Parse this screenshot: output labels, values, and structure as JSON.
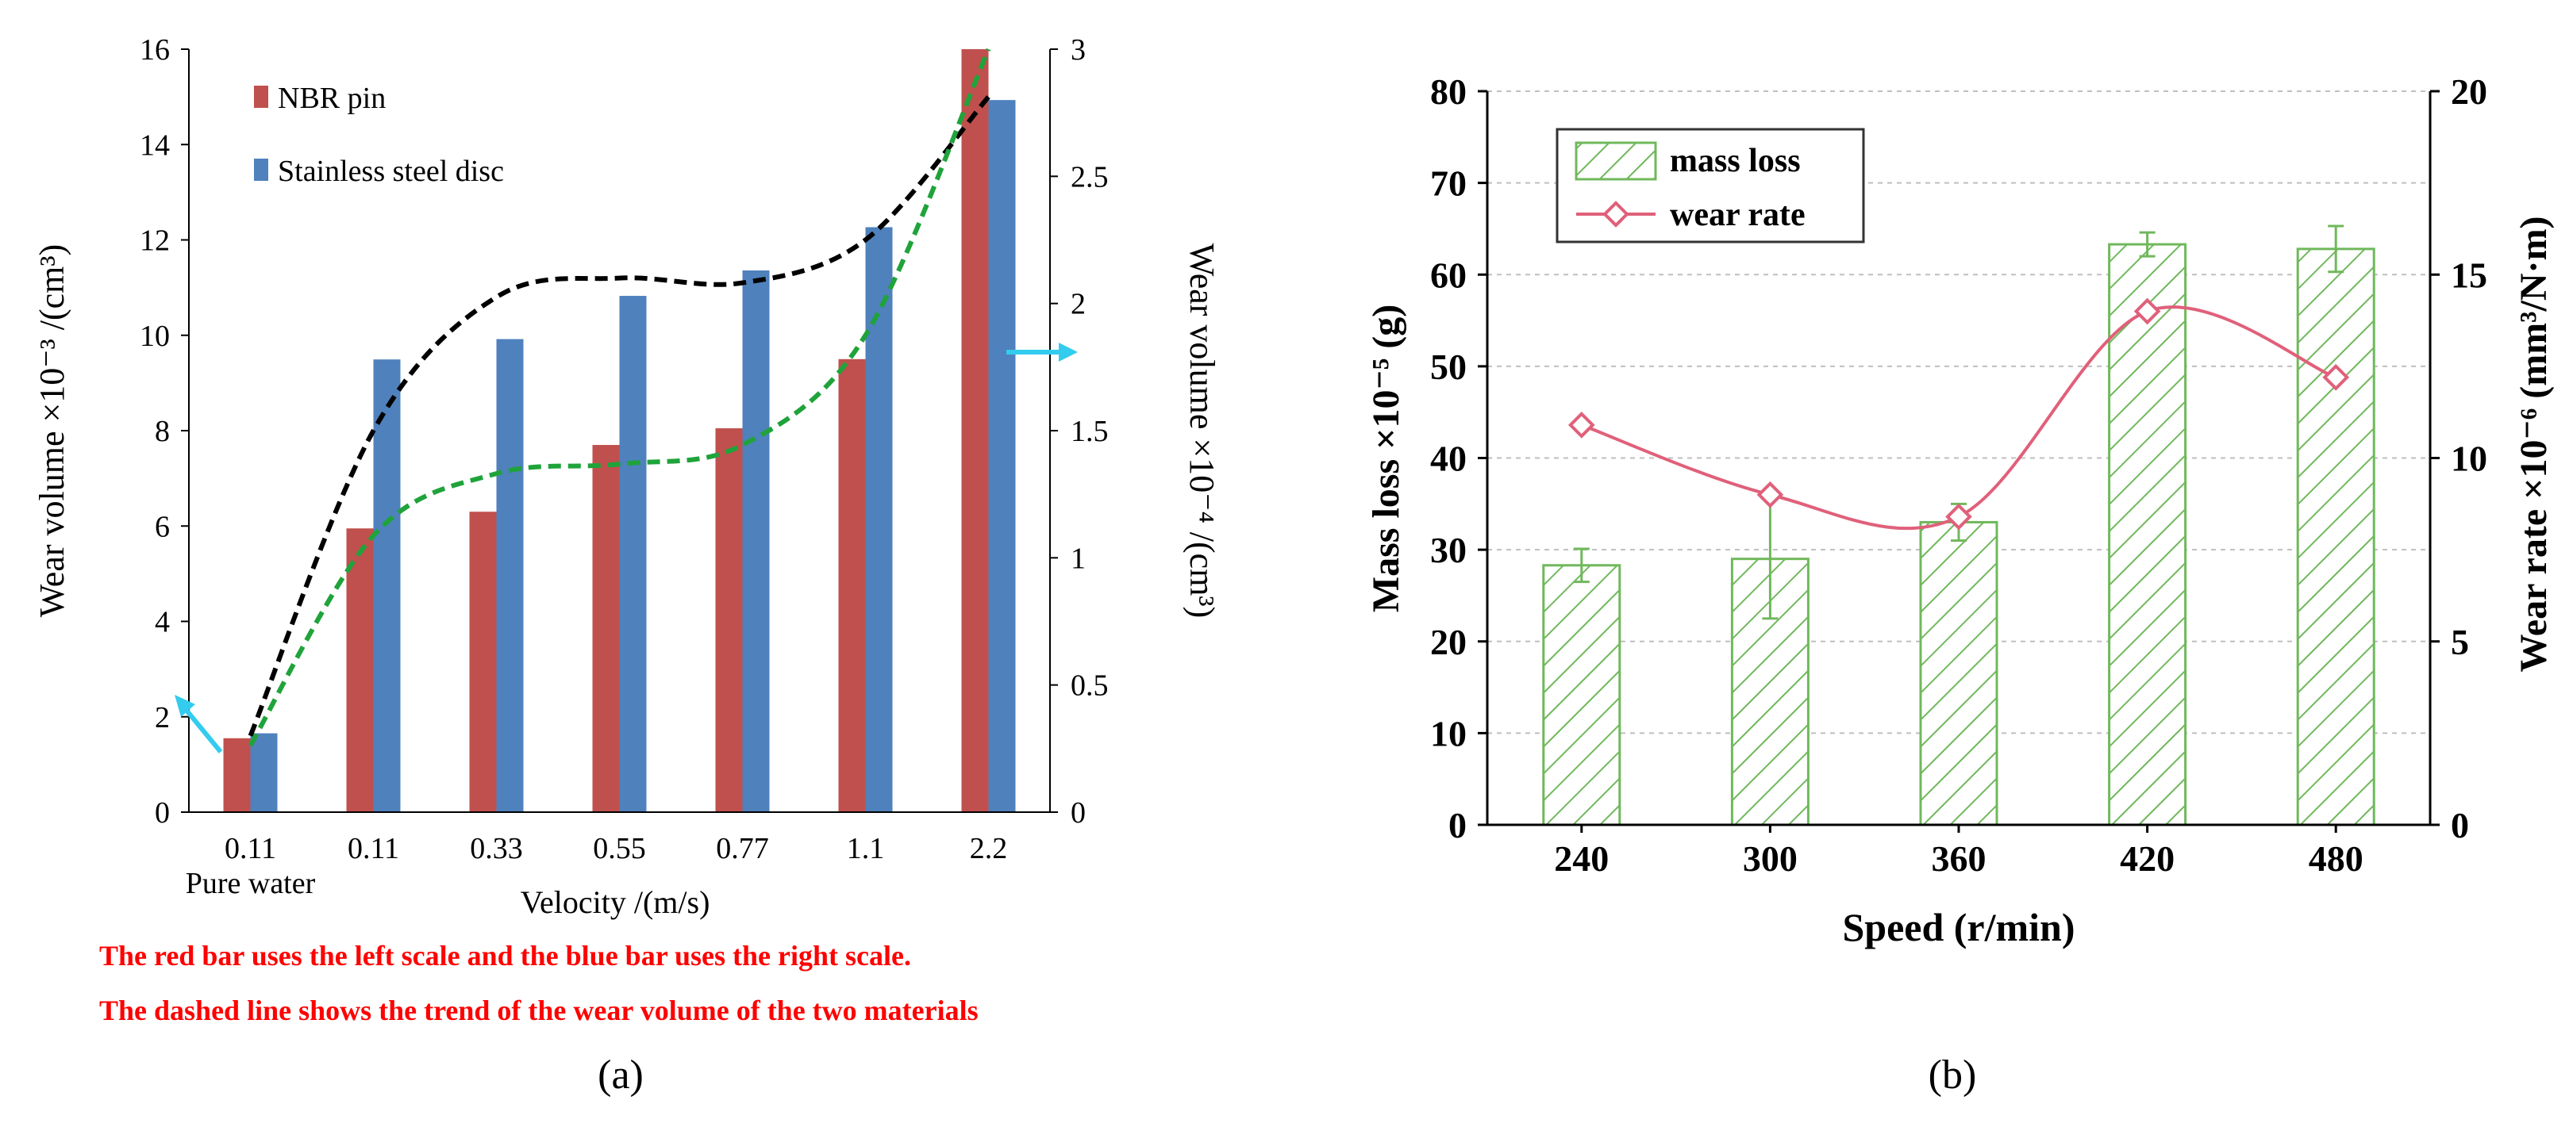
{
  "chart_data": [
    {
      "panel_label": "(a)",
      "type": "bar",
      "categories": [
        "0.11",
        "0.11",
        "0.33",
        "0.55",
        "0.77",
        "1.1",
        "2.2"
      ],
      "category_sublabels": [
        "Pure water",
        "",
        "",
        "",
        "",
        "",
        ""
      ],
      "xlabel": "Velocity /(m/s)",
      "ylabel_left": "Wear volume ×10⁻³ /(cm³)",
      "ylabel_right": "Wear volume ×10⁻⁴ /(cm³)",
      "ylim_left": [
        0,
        16
      ],
      "yticks_left": [
        "0",
        "2",
        "4",
        "6",
        "8",
        "10",
        "12",
        "14",
        "16"
      ],
      "ylim_right": [
        0,
        3
      ],
      "yticks_right": [
        "0",
        "0.5",
        "1",
        "1.5",
        "2",
        "2.5",
        "3"
      ],
      "series": [
        {
          "name": "NBR pin",
          "axis": "left",
          "color": "#c0504d",
          "values": [
            1.55,
            5.95,
            6.3,
            7.7,
            8.05,
            9.5,
            16.0
          ]
        },
        {
          "name": "Stainless steel disc",
          "axis": "right",
          "color": "#4f81bd",
          "values": [
            0.31,
            1.78,
            1.86,
            2.03,
            2.13,
            2.3,
            2.8
          ]
        }
      ],
      "trend_lines": [
        {
          "style": "dashed",
          "color": "#000000",
          "axis": "left",
          "values": [
            1.6,
            8.0,
            10.8,
            11.2,
            11.1,
            12.0,
            15.0
          ]
        },
        {
          "style": "dashed",
          "color": "#1fa33a",
          "axis": "left",
          "values": [
            1.4,
            5.8,
            7.1,
            7.3,
            7.7,
            10.0,
            16.0
          ]
        }
      ],
      "notes": [
        "The red bar uses the left scale and the blue bar uses the right scale.",
        "The dashed line shows the trend of the wear volume of the two materials"
      ],
      "note_color": "#ff0000",
      "arrow_color": "#33ccee"
    },
    {
      "panel_label": "(b)",
      "type": "bar+line",
      "categories": [
        "240",
        "300",
        "360",
        "420",
        "480"
      ],
      "xlabel": "Speed (r/min)",
      "ylabel_left": "Mass loss ×10⁻⁵ (g)",
      "ylabel_right": "Wear rate ×10⁻⁶ (mm³/N·m)",
      "ylim_left": [
        0,
        80
      ],
      "yticks_left": [
        "0",
        "10",
        "20",
        "30",
        "40",
        "50",
        "60",
        "70",
        "80"
      ],
      "ylim_right": [
        0,
        20
      ],
      "yticks_right": [
        "0",
        "5",
        "10",
        "15",
        "20"
      ],
      "series": [
        {
          "name": "mass loss",
          "type": "bar",
          "axis": "left",
          "color": "#70b85c",
          "values": [
            28.3,
            29.0,
            33.0,
            63.3,
            62.8
          ],
          "error": [
            1.8,
            6.5,
            2.0,
            1.3,
            2.5
          ]
        },
        {
          "name": "wear rate",
          "type": "line",
          "axis": "right",
          "color": "#e0607a",
          "values": [
            10.9,
            9.0,
            8.4,
            14.0,
            12.2
          ]
        }
      ],
      "grid": true,
      "legend": "top-left"
    }
  ]
}
